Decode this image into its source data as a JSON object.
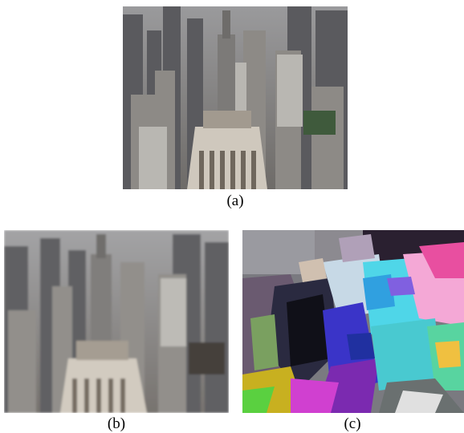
{
  "figure": {
    "panels": [
      {
        "id": "a",
        "caption": "(a)",
        "description_icon": "city-aerial-photo"
      },
      {
        "id": "b",
        "caption": "(b)",
        "description_icon": "city-aerial-photo-blurred"
      },
      {
        "id": "c",
        "caption": "(c)",
        "description_icon": "corrupted-color-artifact-image"
      }
    ]
  }
}
